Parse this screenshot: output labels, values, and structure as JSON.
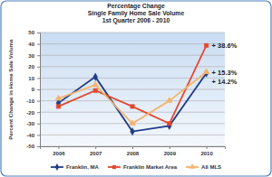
{
  "chart_data": {
    "type": "line",
    "title": [
      "Percentage Change",
      "Single Family Home Sale Volume",
      "1st Quarter 2006 - 2010"
    ],
    "y_label": "Percent Change in Home Sale Volume",
    "categories": [
      "2006",
      "2007",
      "2008",
      "2009",
      "2010"
    ],
    "series": [
      {
        "name": "Franklin, MA",
        "color": "#1f3c88",
        "marker": "diamond",
        "line_style": "solid",
        "values": [
          -12,
          11,
          -37,
          -32,
          14.2
        ],
        "value_labels": [
          null,
          null,
          null,
          null,
          "+ 14.2%"
        ]
      },
      {
        "name": "Franklin Market Area",
        "color": "#e3492f",
        "marker": "square",
        "line_style": "solid",
        "values": [
          -15,
          -1,
          -15,
          -30,
          38.6
        ],
        "value_labels": [
          null,
          null,
          null,
          null,
          "+ 38.6%"
        ]
      },
      {
        "name": "All MLS",
        "color": "#f5b26b",
        "marker": "triangle",
        "line_style": "solid",
        "values": [
          -8,
          4,
          -30,
          -10,
          15.3
        ],
        "value_labels": [
          null,
          null,
          null,
          null,
          "+ 15.3%"
        ]
      }
    ],
    "ylim": [
      -50,
      50
    ],
    "yticks": [
      -50,
      -40,
      -30,
      -20,
      -10,
      0,
      10,
      20,
      30,
      40,
      50
    ],
    "grid": true,
    "legend": "bottom"
  }
}
